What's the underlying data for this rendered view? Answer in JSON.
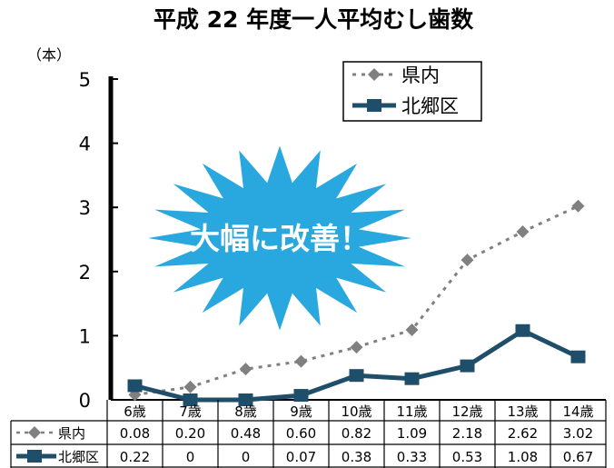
{
  "chart_data": {
    "type": "line",
    "title": "平成 22 年度一人平均むし歯数",
    "unit_label": "（本）",
    "ylim": [
      0,
      5
    ],
    "yticks": [
      0,
      1,
      2,
      3,
      4,
      5
    ],
    "categories": [
      "6歳",
      "7歳",
      "8歳",
      "9歳",
      "10歳",
      "11歳",
      "12歳",
      "13歳",
      "14歳"
    ],
    "series": [
      {
        "name": "県内",
        "values": [
          0.08,
          0.2,
          0.48,
          0.6,
          0.82,
          1.09,
          2.18,
          2.62,
          3.02
        ],
        "labels": [
          "0.08",
          "0.20",
          "0.48",
          "0.60",
          "0.82",
          "1.09",
          "2.18",
          "2.62",
          "3.02"
        ],
        "color": "#808080",
        "style": "dotted",
        "marker": "diamond"
      },
      {
        "name": "北郷区",
        "values": [
          0.22,
          0,
          0,
          0.07,
          0.38,
          0.33,
          0.53,
          1.08,
          0.67
        ],
        "labels": [
          "0.22",
          "0",
          "0",
          "0.07",
          "0.38",
          "0.33",
          "0.53",
          "1.08",
          "0.67"
        ],
        "color": "#1f4e6b",
        "style": "solid",
        "marker": "square"
      }
    ],
    "legend_position": "top-right",
    "grid": false,
    "annotation": {
      "text": "大幅に改善！",
      "fill": "#29a8e0",
      "text_color": "#ffffff"
    }
  }
}
